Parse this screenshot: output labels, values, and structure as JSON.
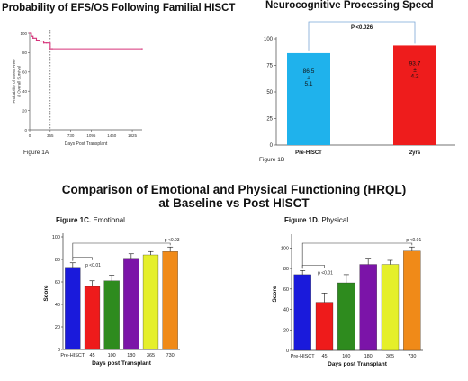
{
  "panelA": {
    "title": "Probability of EFS/OS Following Familial HISCT",
    "caption": "Figure 1A",
    "chart_data": {
      "type": "line",
      "title": "Probability of EFS/OS Following Familial HISCT",
      "xlabel": "Days Post Transplant",
      "ylabel": "Probability of Event Free & Overall Survival",
      "xlim": [
        0,
        2000
      ],
      "ylim": [
        0,
        100
      ],
      "xticks": [
        "0",
        "365",
        "730",
        "1095",
        "1460",
        "1825"
      ],
      "yticks": [
        "0",
        "20",
        "40",
        "60",
        "80",
        "100"
      ],
      "series": [
        {
          "x": [
            0,
            30,
            60,
            120,
            180,
            250,
            300,
            365,
            400,
            2000
          ],
          "y": [
            100,
            97,
            95,
            93,
            92,
            90,
            90,
            84,
            84,
            84
          ]
        }
      ],
      "reference_line_x": 365,
      "color": "#d6337a"
    }
  },
  "panelB": {
    "title": "Neurocognitive Processing Speed",
    "caption": "Figure 1B",
    "chart_data": {
      "type": "bar",
      "categories": [
        "Pre-HISCT",
        "2yrs"
      ],
      "values": [
        86.5,
        93.7
      ],
      "errors": [
        5.1,
        4.2
      ],
      "value_labels": [
        "86.5",
        "93.7"
      ],
      "pm_symbol": "±",
      "error_labels": [
        "5.1",
        "4.2"
      ],
      "colors": [
        "#1fb2ec",
        "#ee1c1c"
      ],
      "ylim": [
        0,
        100
      ],
      "yticks": [
        "0",
        "25",
        "50",
        "75",
        "100"
      ],
      "significance": "P <0.026"
    }
  },
  "main_title": {
    "line1": "Comparison of Emotional and Physical Functioning (HRQL)",
    "line2": "at Baseline vs Post HISCT"
  },
  "panelC": {
    "fig_label": "Figure 1C.",
    "subtitle": "Emotional",
    "chart_data": {
      "type": "bar",
      "categories": [
        "Pre-HISCT",
        "45",
        "100",
        "180",
        "365",
        "730"
      ],
      "values": [
        73,
        56,
        61,
        81,
        84,
        87
      ],
      "errors": [
        4,
        5,
        5,
        4,
        3,
        4
      ],
      "colors": [
        "#1a1adb",
        "#ee1b1b",
        "#2e8b1e",
        "#7b14a8",
        "#e5ef2a",
        "#f08a18"
      ],
      "xlabel": "Days post Transplant",
      "ylabel": "Score",
      "ylim": [
        0,
        100
      ],
      "yticks": [
        "0",
        "20",
        "40",
        "60",
        "80",
        "100"
      ],
      "annotations": [
        "p <0.01",
        "p <0.03"
      ]
    }
  },
  "panelD": {
    "fig_label": "Figure 1D.",
    "subtitle": "Physical",
    "chart_data": {
      "type": "bar",
      "categories": [
        "Pre-HISCT",
        "45",
        "100",
        "180",
        "365",
        "730"
      ],
      "values": [
        74,
        47,
        66,
        84,
        84,
        97
      ],
      "errors": [
        4,
        9,
        8,
        6,
        4,
        4
      ],
      "colors": [
        "#1a1adb",
        "#ee1b1b",
        "#2e8b1e",
        "#7b14a8",
        "#e5ef2a",
        "#f08a18"
      ],
      "xlabel": "Days post Transplant",
      "ylabel": "Score",
      "ylim": [
        0,
        110
      ],
      "yticks": [
        "0",
        "20",
        "40",
        "60",
        "80",
        "100"
      ],
      "annotations": [
        "p <0.01",
        "p <0.01"
      ]
    }
  }
}
